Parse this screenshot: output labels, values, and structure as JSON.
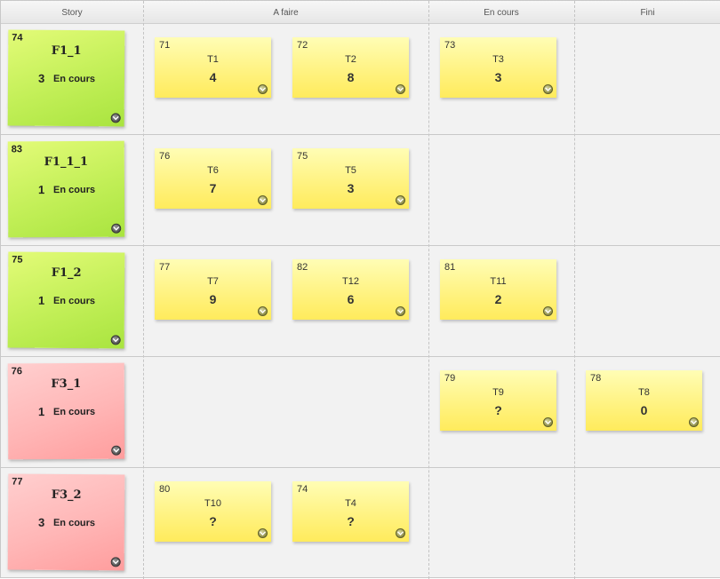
{
  "columns": [
    "Story",
    "A faire",
    "En cours",
    "Fini"
  ],
  "menu_icon": "chevron-down-icon",
  "colors": {
    "story_green": "#c2ef57",
    "story_red": "#ffb6b6",
    "task_yellow": "#fff27e"
  },
  "rows": [
    {
      "story": {
        "id": "74",
        "name": "F1_1",
        "count": "3",
        "status": "En cours",
        "color": "green"
      },
      "a_faire": [
        {
          "id": "71",
          "name": "T1",
          "estimate": "4"
        },
        {
          "id": "72",
          "name": "T2",
          "estimate": "8"
        }
      ],
      "en_cours": [
        {
          "id": "73",
          "name": "T3",
          "estimate": "3"
        }
      ],
      "fini": []
    },
    {
      "story": {
        "id": "83",
        "name": "F1_1_1",
        "count": "1",
        "status": "En cours",
        "color": "green"
      },
      "a_faire": [
        {
          "id": "76",
          "name": "T6",
          "estimate": "7"
        },
        {
          "id": "75",
          "name": "T5",
          "estimate": "3"
        }
      ],
      "en_cours": [],
      "fini": []
    },
    {
      "story": {
        "id": "75",
        "name": "F1_2",
        "count": "1",
        "status": "En cours",
        "color": "green"
      },
      "a_faire": [
        {
          "id": "77",
          "name": "T7",
          "estimate": "9"
        },
        {
          "id": "82",
          "name": "T12",
          "estimate": "6"
        }
      ],
      "en_cours": [
        {
          "id": "81",
          "name": "T11",
          "estimate": "2"
        }
      ],
      "fini": []
    },
    {
      "story": {
        "id": "76",
        "name": "F3_1",
        "count": "1",
        "status": "En cours",
        "color": "red"
      },
      "a_faire": [],
      "en_cours": [
        {
          "id": "79",
          "name": "T9",
          "estimate": "?"
        }
      ],
      "fini": [
        {
          "id": "78",
          "name": "T8",
          "estimate": "0"
        }
      ]
    },
    {
      "story": {
        "id": "77",
        "name": "F3_2",
        "count": "3",
        "status": "En cours",
        "color": "red"
      },
      "a_faire": [
        {
          "id": "80",
          "name": "T10",
          "estimate": "?"
        },
        {
          "id": "74",
          "name": "T4",
          "estimate": "?"
        }
      ],
      "en_cours": [],
      "fini": []
    }
  ]
}
